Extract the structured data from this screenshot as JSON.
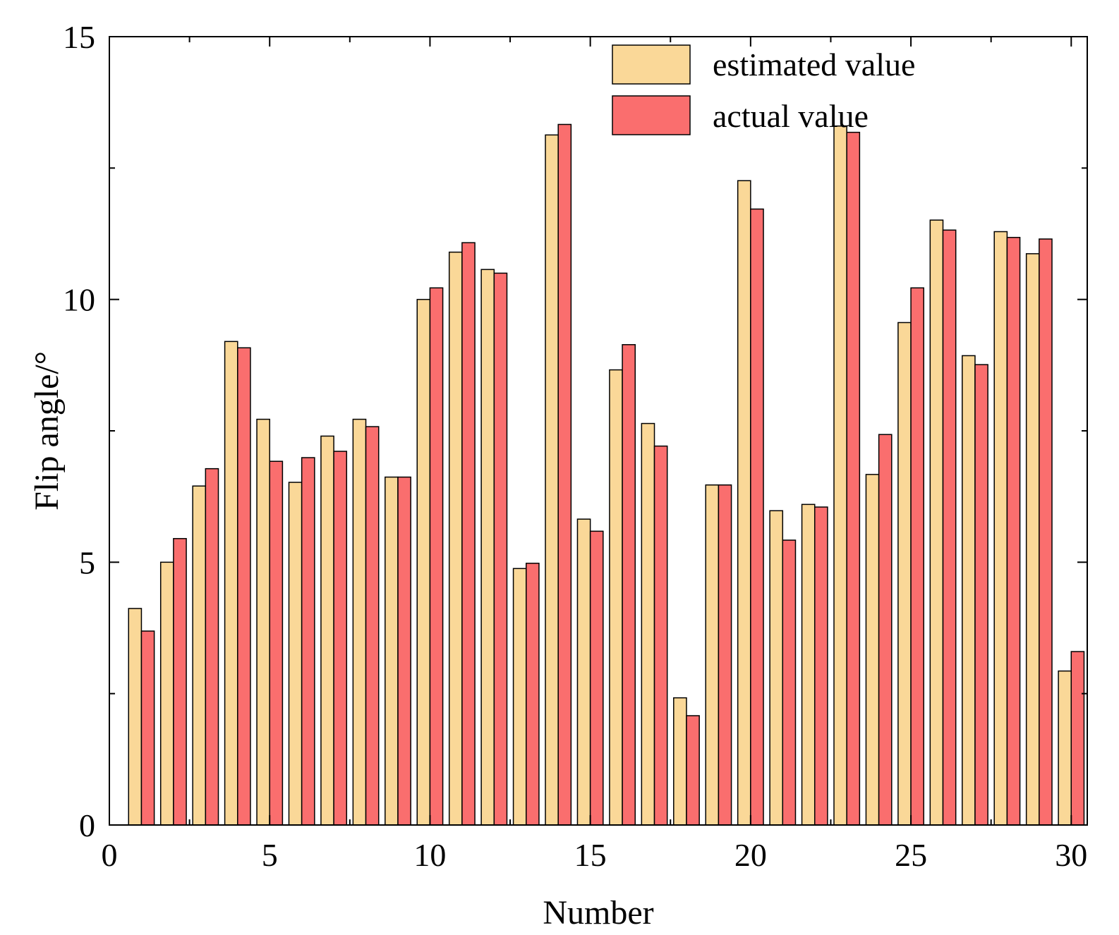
{
  "chart_data": {
    "type": "bar",
    "title": "",
    "xlabel": "Number",
    "ylabel": "Flip angle/°",
    "xlim": [
      0,
      30.5
    ],
    "ylim": [
      0,
      15
    ],
    "xticks": [
      0,
      5,
      10,
      15,
      20,
      25,
      30
    ],
    "yticks": [
      0,
      5,
      10,
      15
    ],
    "legend_position": "top-right",
    "categories": [
      1,
      2,
      3,
      4,
      5,
      6,
      7,
      8,
      9,
      10,
      11,
      12,
      13,
      14,
      15,
      16,
      17,
      18,
      19,
      20,
      21,
      22,
      23,
      24,
      25,
      26,
      27,
      28,
      29,
      30
    ],
    "series": [
      {
        "name": "estimated value",
        "color": "#FAD898",
        "values": [
          4.12,
          5.0,
          6.45,
          9.2,
          7.72,
          6.52,
          7.4,
          7.72,
          6.62,
          10.0,
          10.9,
          10.57,
          4.88,
          13.13,
          5.82,
          8.66,
          7.64,
          2.42,
          6.47,
          12.26,
          5.98,
          6.1,
          13.3,
          6.67,
          9.56,
          11.51,
          8.93,
          11.29,
          10.87,
          2.93
        ],
        "offset": -0.2
      },
      {
        "name": "actual value",
        "color": "#FA6E6E",
        "values": [
          3.69,
          5.45,
          6.78,
          9.08,
          6.92,
          6.99,
          7.11,
          7.58,
          6.62,
          10.22,
          11.08,
          10.5,
          4.98,
          13.33,
          5.59,
          9.14,
          7.21,
          2.08,
          6.47,
          11.72,
          5.42,
          6.05,
          13.18,
          7.43,
          10.22,
          11.32,
          8.76,
          11.18,
          11.15,
          3.3
        ],
        "offset": 0.2
      }
    ]
  }
}
